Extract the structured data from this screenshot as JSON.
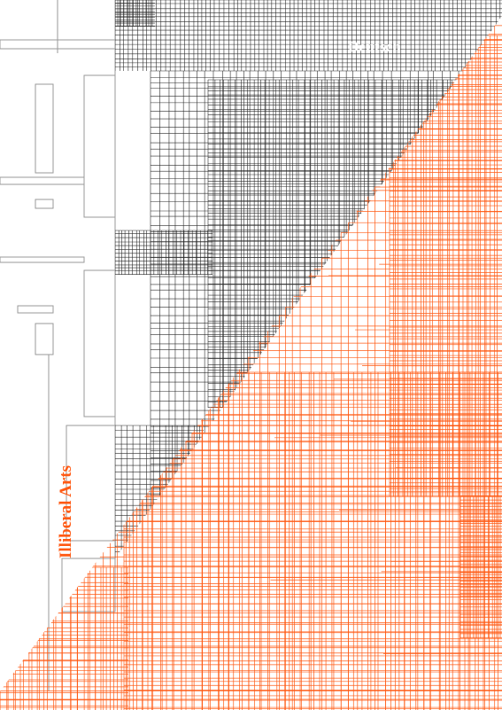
{
  "poster": {
    "language_label": "Deutsch",
    "title": "Illiberal Arts"
  },
  "colors": {
    "background": "#ffffff",
    "dark_lines": "#2b2b2b",
    "accent": "#ff5a14",
    "accent_text": "#ff5a14",
    "light_text": "#ffffff",
    "outline": "#9a9a9a"
  }
}
